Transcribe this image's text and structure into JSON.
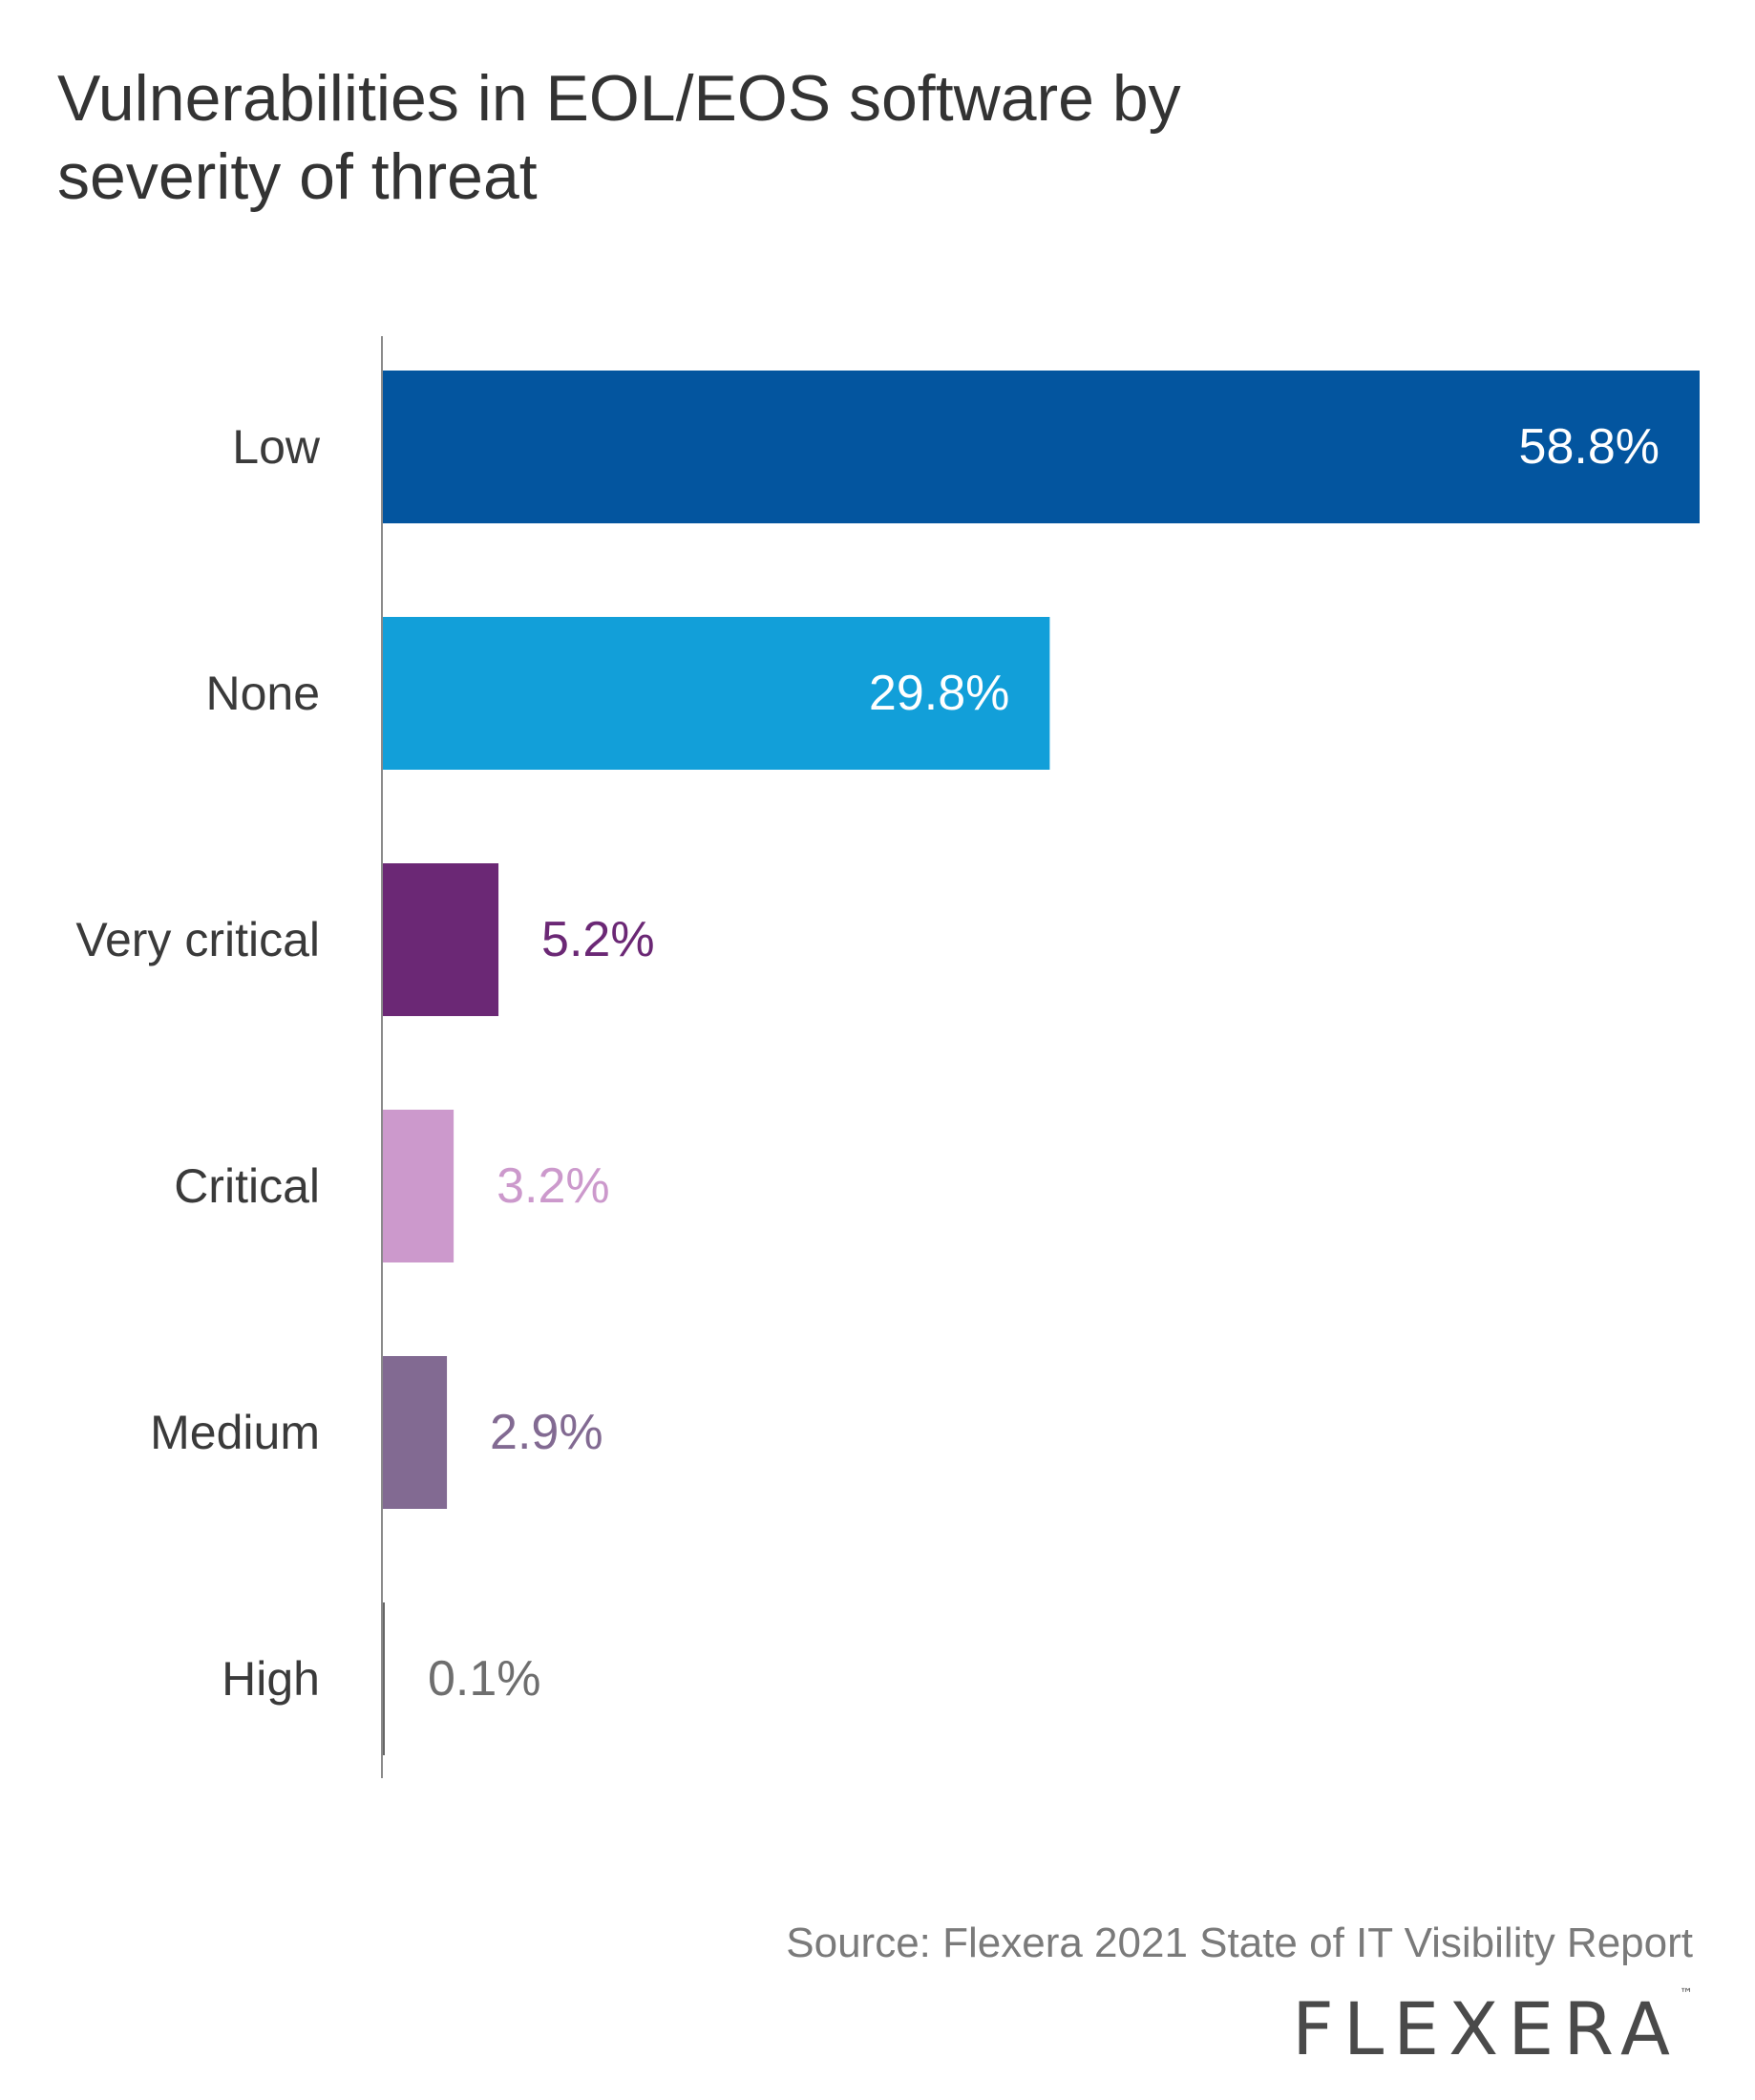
{
  "header": {
    "title_line1": "Vulnerabilities in EOL/EOS software by",
    "title_line2": "severity of threat"
  },
  "chart_data": {
    "type": "bar",
    "orientation": "horizontal",
    "title": "Vulnerabilities in EOL/EOS software by severity of threat",
    "categories": [
      "Low",
      "None",
      "Very critical",
      "Critical",
      "Medium",
      "High"
    ],
    "values": [
      58.8,
      29.8,
      5.2,
      3.2,
      2.9,
      0.1
    ],
    "value_labels": [
      "58.8%",
      "29.8%",
      "5.2%",
      "3.2%",
      "2.9%",
      "0.1%"
    ],
    "colors": [
      "#03559f",
      "#129fd9",
      "#6b2875",
      "#cc99cc",
      "#826a92",
      "#666666"
    ],
    "label_colors": [
      "#ffffff",
      "#ffffff",
      "#6b2875",
      "#cc99cc",
      "#826a92",
      "#6e6e6e"
    ],
    "label_inside": [
      true,
      true,
      false,
      false,
      false,
      false
    ],
    "xlim": [
      0,
      58.8
    ],
    "xlabel": "",
    "ylabel": "",
    "grid": false,
    "legend": "none"
  },
  "footer": {
    "source": "Source: Flexera 2021 State of IT Visibility Report",
    "logo_text": "FLEXERA",
    "logo_mark": "™"
  }
}
